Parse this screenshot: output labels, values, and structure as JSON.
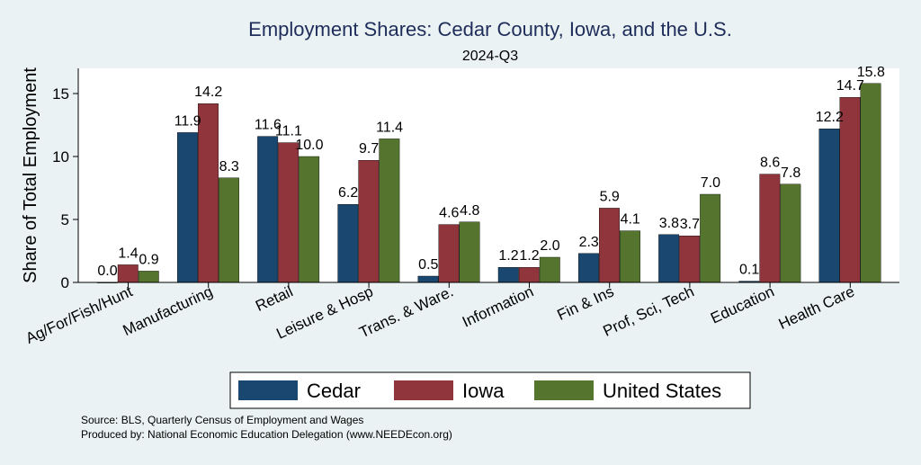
{
  "chart_data": {
    "type": "bar",
    "title": "Employment Shares: Cedar County, Iowa, and the U.S.",
    "subtitle": "2024-Q3",
    "ylabel": "Share of Total Employment",
    "xlabel": "",
    "ylim": [
      0,
      17
    ],
    "yticks": [
      0,
      5,
      10,
      15
    ],
    "grid": false,
    "legend_position": "bottom",
    "categories": [
      "Ag/For/Fish/Hunt",
      "Manufacturing",
      "Retail",
      "Leisure & Hosp",
      "Trans. & Ware.",
      "Information",
      "Fin & Ins",
      "Prof, Sci, Tech",
      "Education",
      "Health Care"
    ],
    "series": [
      {
        "name": "Cedar",
        "color": "#1a476f",
        "values": [
          0.0,
          11.9,
          11.6,
          6.2,
          0.5,
          1.2,
          2.3,
          3.8,
          0.1,
          12.2
        ]
      },
      {
        "name": "Iowa",
        "color": "#90353b",
        "values": [
          1.4,
          14.2,
          11.1,
          9.7,
          4.6,
          1.2,
          5.9,
          3.7,
          8.6,
          14.7
        ]
      },
      {
        "name": "United States",
        "color": "#55752f",
        "values": [
          0.9,
          8.3,
          10.0,
          11.4,
          4.8,
          2.0,
          4.1,
          7.0,
          7.8,
          15.8
        ]
      }
    ],
    "notes": [
      "Source: BLS, Quarterly Census of Employment and Wages",
      "Produced by: National Economic Education Delegation (www.NEEDEcon.org)"
    ]
  }
}
